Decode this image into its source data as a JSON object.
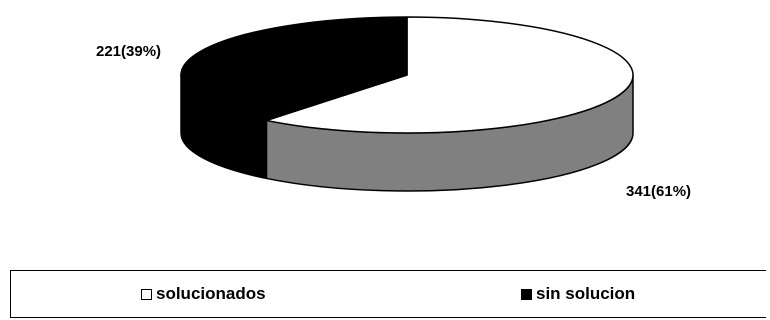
{
  "chart_data": {
    "type": "pie",
    "style": "3d",
    "categories": [
      "solucionados",
      "sin solucion"
    ],
    "values": [
      341,
      221
    ],
    "percentages": [
      61,
      39
    ],
    "data_labels": [
      "341(61%)",
      "221(39%)"
    ],
    "colors": {
      "solucionados_top": "#ffffff",
      "solucionados_side": "#808080",
      "sin_solucion": "#000000"
    },
    "legend_position": "bottom",
    "title": ""
  },
  "legend": {
    "items": [
      {
        "label": "solucionados",
        "color": "#ffffff"
      },
      {
        "label": "sin solucion",
        "color": "#000000"
      }
    ]
  }
}
